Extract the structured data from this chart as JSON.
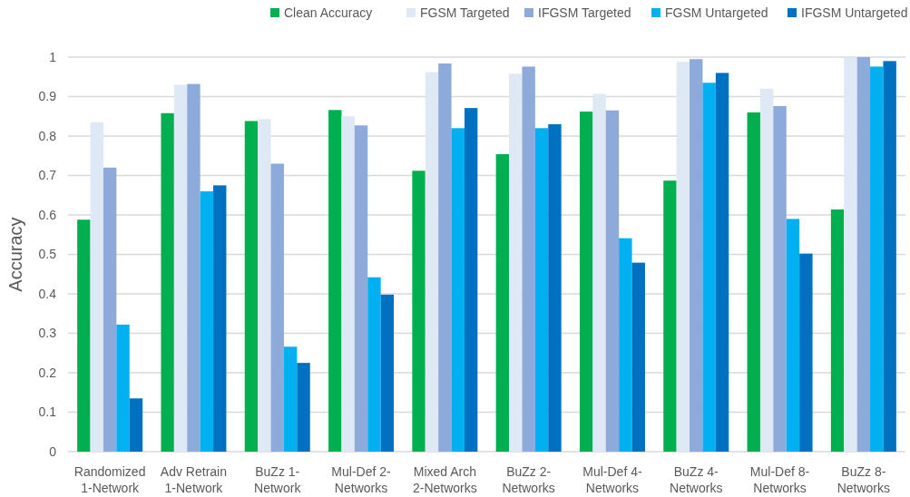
{
  "chart_data": {
    "type": "bar",
    "ylabel": "Accuracy",
    "categories": [
      "Randomized 1-Network",
      "Adv Retrain 1-Network",
      "BuZz 1-Network",
      "Mul-Def 2-Networks",
      "Mixed Arch 2-Networks",
      "BuZz 2-Networks",
      "Mul-Def 4-Networks",
      "BuZz 4-Networks",
      "Mul-Def 8-Networks",
      "BuZz 8-Networks"
    ],
    "series": [
      {
        "name": "Clean Accuracy",
        "color": "#00b050",
        "values": [
          0.588,
          0.858,
          0.838,
          0.866,
          0.712,
          0.754,
          0.862,
          0.687,
          0.86,
          0.614
        ]
      },
      {
        "name": "FGSM Targeted",
        "color": "#dee9f5",
        "values": [
          0.835,
          0.93,
          0.843,
          0.85,
          0.962,
          0.958,
          0.907,
          0.988,
          0.92,
          0.998
        ]
      },
      {
        "name": "IFGSM Targeted",
        "color": "#8eaadb",
        "values": [
          0.72,
          0.932,
          0.73,
          0.827,
          0.984,
          0.976,
          0.865,
          0.995,
          0.876,
          1.0
        ]
      },
      {
        "name": "FGSM Untargeted",
        "color": "#00b0f0",
        "values": [
          0.322,
          0.66,
          0.266,
          0.442,
          0.82,
          0.82,
          0.541,
          0.935,
          0.59,
          0.976
        ]
      },
      {
        "name": "IFGSM Untargeted",
        "color": "#0070c0",
        "values": [
          0.135,
          0.675,
          0.225,
          0.398,
          0.871,
          0.83,
          0.479,
          0.96,
          0.502,
          0.99
        ]
      }
    ],
    "ylim": [
      0,
      1
    ],
    "yticks": [
      0,
      0.1,
      0.2,
      0.3,
      0.4,
      0.5,
      0.6,
      0.7,
      0.8,
      0.9,
      1
    ],
    "grid": "y",
    "legend": "top"
  }
}
